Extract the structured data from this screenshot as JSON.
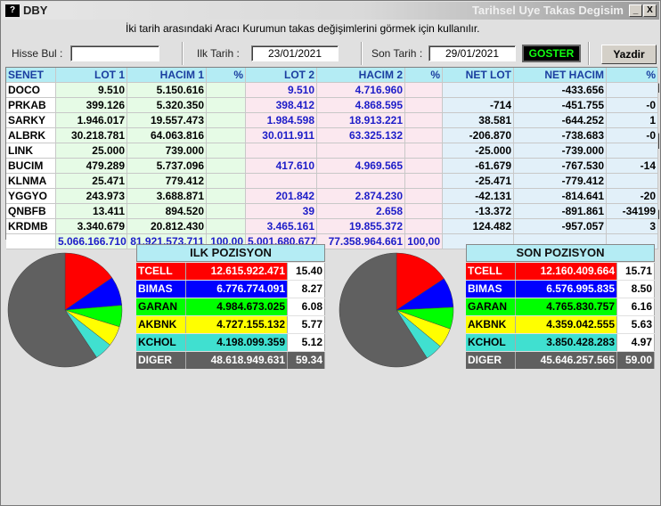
{
  "window": {
    "icon": "?",
    "title": "DBY",
    "title_right": "Tarihsel Uye Takas Degisim",
    "minimize": "_",
    "close": "X"
  },
  "description": "İki tarih arasındaki  Aracı Kurumun takas değişimlerini görmek için kullanılır.",
  "controls": {
    "hisse_bul_label": "Hisse Bul :",
    "hisse_bul_value": "",
    "ilk_tarih_label": "Ilk Tarih :",
    "ilk_tarih_value": "23/01/2021",
    "son_tarih_label": "Son Tarih :",
    "son_tarih_value": "29/01/2021",
    "goster_label": "GOSTER",
    "yazdir_label": "Yazdir"
  },
  "table": {
    "headers": [
      "SENET",
      "LOT 1",
      "HACIM 1",
      "%",
      "LOT 2",
      "HACIM 2",
      "%",
      "NET LOT",
      "NET HACIM",
      "%"
    ],
    "rows": [
      [
        "DOCO",
        "9.510",
        "5.150.616",
        "",
        "9.510",
        "4.716.960",
        "",
        "",
        "-433.656",
        ""
      ],
      [
        "PRKAB",
        "399.126",
        "5.320.350",
        "",
        "398.412",
        "4.868.595",
        "",
        "-714",
        "-451.755",
        "-0"
      ],
      [
        "SARKY",
        "1.946.017",
        "19.557.473",
        "",
        "1.984.598",
        "18.913.221",
        "",
        "38.581",
        "-644.252",
        "1"
      ],
      [
        "ALBRK",
        "30.218.781",
        "64.063.816",
        "",
        "30.011.911",
        "63.325.132",
        "",
        "-206.870",
        "-738.683",
        "-0"
      ],
      [
        "LINK",
        "25.000",
        "739.000",
        "",
        "",
        "",
        "",
        "-25.000",
        "-739.000",
        ""
      ],
      [
        "BUCIM",
        "479.289",
        "5.737.096",
        "",
        "417.610",
        "4.969.565",
        "",
        "-61.679",
        "-767.530",
        "-14"
      ],
      [
        "KLNMA",
        "25.471",
        "779.412",
        "",
        "",
        "",
        "",
        "-25.471",
        "-779.412",
        ""
      ],
      [
        "YGGYO",
        "243.973",
        "3.688.871",
        "",
        "201.842",
        "2.874.230",
        "",
        "-42.131",
        "-814.641",
        "-20"
      ],
      [
        "QNBFB",
        "13.411",
        "894.520",
        "",
        "39",
        "2.658",
        "",
        "-13.372",
        "-891.861",
        "-34199"
      ],
      [
        "KRDMB",
        "3.340.679",
        "20.812.430",
        "",
        "3.465.161",
        "19.855.372",
        "",
        "124.482",
        "-957.057",
        "3"
      ]
    ],
    "totals": [
      "",
      "5.066.166.710",
      "81.921.573.711",
      "100,00",
      "5.001.680.677",
      "77.358.964.661",
      "100,00",
      "",
      "",
      ""
    ]
  },
  "ilk_pozisyon": {
    "title": "ILK POZISYON",
    "rows": [
      {
        "name": "TCELL",
        "value": "12.615.922.471",
        "pct": "15.40",
        "pct_num": 15.4,
        "color": "#ff0000",
        "text": "#ffffff"
      },
      {
        "name": "BIMAS",
        "value": "6.776.774.091",
        "pct": "8.27",
        "pct_num": 8.27,
        "color": "#0000ff",
        "text": "#ffffff"
      },
      {
        "name": "GARAN",
        "value": "4.984.673.025",
        "pct": "6.08",
        "pct_num": 6.08,
        "color": "#00ff00",
        "text": "#000000"
      },
      {
        "name": "AKBNK",
        "value": "4.727.155.132",
        "pct": "5.77",
        "pct_num": 5.77,
        "color": "#ffff00",
        "text": "#000000"
      },
      {
        "name": "KCHOL",
        "value": "4.198.099.359",
        "pct": "5.12",
        "pct_num": 5.12,
        "color": "#40e0d0",
        "text": "#000000"
      },
      {
        "name": "DIGER",
        "value": "48.618.949.631",
        "pct": "59.34",
        "pct_num": 59.34,
        "color": "#606060",
        "text": "#ffffff"
      }
    ]
  },
  "son_pozisyon": {
    "title": "SON POZISYON",
    "rows": [
      {
        "name": "TCELL",
        "value": "12.160.409.664",
        "pct": "15.71",
        "pct_num": 15.71,
        "color": "#ff0000",
        "text": "#ffffff"
      },
      {
        "name": "BIMAS",
        "value": "6.576.995.835",
        "pct": "8.50",
        "pct_num": 8.5,
        "color": "#0000ff",
        "text": "#ffffff"
      },
      {
        "name": "GARAN",
        "value": "4.765.830.757",
        "pct": "6.16",
        "pct_num": 6.16,
        "color": "#00ff00",
        "text": "#000000"
      },
      {
        "name": "AKBNK",
        "value": "4.359.042.555",
        "pct": "5.63",
        "pct_num": 5.63,
        "color": "#ffff00",
        "text": "#000000"
      },
      {
        "name": "KCHOL",
        "value": "3.850.428.283",
        "pct": "4.97",
        "pct_num": 4.97,
        "color": "#40e0d0",
        "text": "#000000"
      },
      {
        "name": "DIGER",
        "value": "45.646.257.565",
        "pct": "59.00",
        "pct_num": 59.0,
        "color": "#606060",
        "text": "#ffffff"
      }
    ]
  },
  "colors": {
    "header_bg": "#b4ecf4",
    "header_text": "#1a3ea0",
    "group1_bg": "#e6fbe6",
    "group2_bg": "#fbe8ef",
    "group3_bg": "#e2f0f9",
    "blue_text": "#1c1cc8"
  }
}
